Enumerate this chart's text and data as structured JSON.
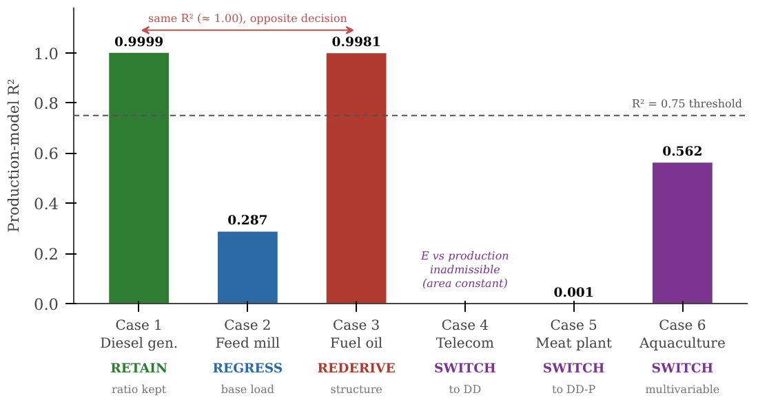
{
  "chart_data": {
    "type": "bar",
    "ylabel": "Production-model R²",
    "categories": [
      "Case 1\nDiesel gen.",
      "Case 2\nFeed mill",
      "Case 3\nFuel oil",
      "Case 4\nTelecom",
      "Case 5\nMeat plant",
      "Case 6\nAquaculture"
    ],
    "values": [
      0.9999,
      0.287,
      0.9981,
      null,
      0.001,
      0.562
    ],
    "colors": [
      "#2e7d32",
      "#2c6aa6",
      "#b03a2e",
      "#7b3591",
      "#7b3591",
      "#7b3591"
    ],
    "data_labels": true,
    "ylim": [
      0,
      1.18
    ],
    "yticks": [
      {
        "value": 0,
        "label": "0.0"
      },
      0.2,
      0.4,
      0.6,
      0.8,
      {
        "value": 1,
        "label": "1.0"
      }
    ],
    "grid": false,
    "ref_lines": [
      {
        "axis": "y",
        "value": 0.75,
        "label": "R² = 0.75 threshold",
        "color": "#555555",
        "line_style": "dashed"
      }
    ],
    "annotations": [
      "same R² (≈ 1.00), opposite decision",
      "E vs production\ninadmissible\n(area constant)",
      "RETAIN",
      "ratio kept",
      "REGRESS",
      "base load",
      "REDERIVE",
      "structure",
      "SWITCH",
      "to DD",
      "SWITCH",
      "to DD-P",
      "SWITCH",
      "multivariable"
    ]
  }
}
